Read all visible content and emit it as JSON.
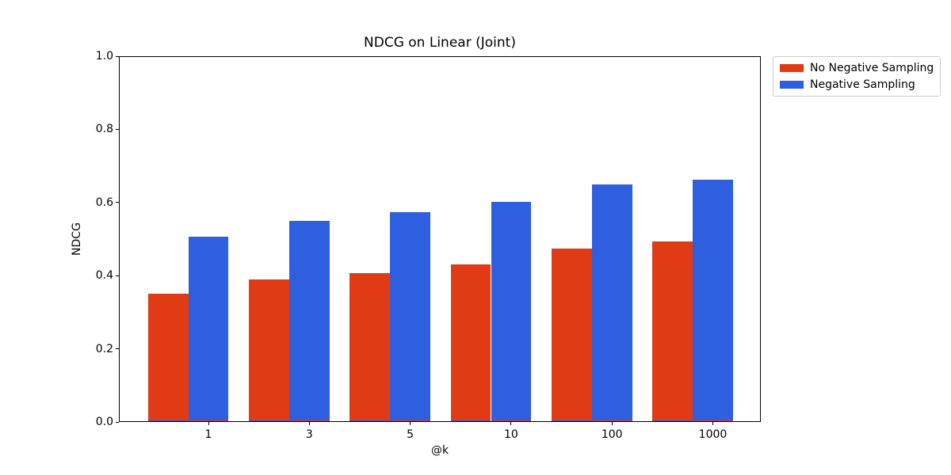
{
  "chart_data": {
    "type": "bar",
    "title": "NDCG on Linear (Joint)",
    "xlabel": "@k",
    "ylabel": "NDCG",
    "categories": [
      "1",
      "3",
      "5",
      "10",
      "100",
      "1000"
    ],
    "series": [
      {
        "name": "No Negative Sampling",
        "color": "#e03b14",
        "values": [
          0.351,
          0.389,
          0.406,
          0.43,
          0.473,
          0.493
        ]
      },
      {
        "name": "Negative Sampling",
        "color": "#2e5fe0",
        "values": [
          0.506,
          0.55,
          0.573,
          0.602,
          0.649,
          0.662
        ]
      }
    ],
    "ylim": [
      0.0,
      1.0
    ],
    "yticks": [
      "0.0",
      "0.2",
      "0.4",
      "0.6",
      "0.8",
      "1.0"
    ],
    "grid": false,
    "legend_position": "outside-top-right",
    "plot_background": "#ffffff",
    "detail_note_base_strip": "each bar shows a 2px strip of the opposite series color at its base"
  }
}
